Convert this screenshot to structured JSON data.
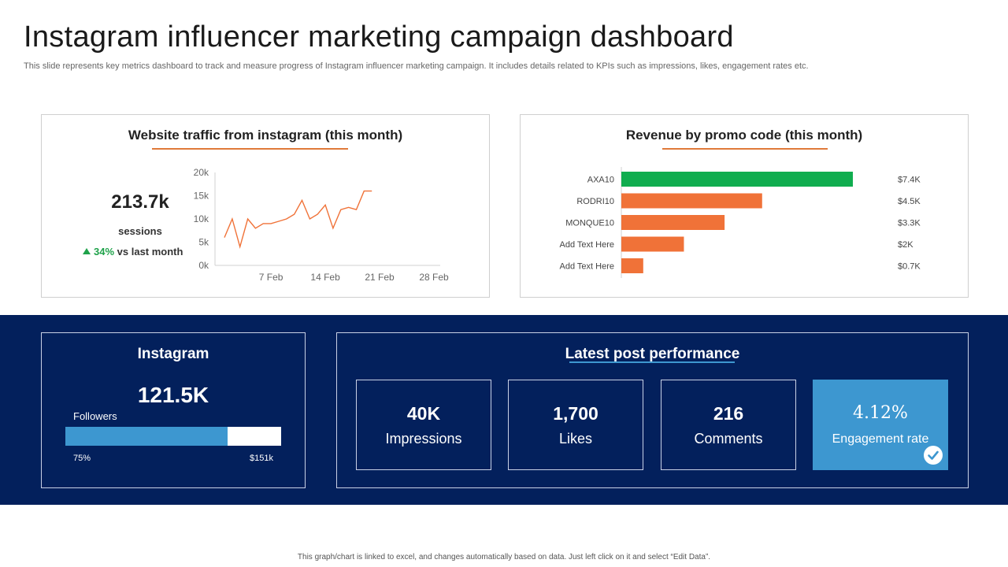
{
  "page": {
    "title": "Instagram influencer marketing campaign dashboard",
    "subtitle": "This slide represents key metrics dashboard to track and measure progress of Instagram influencer marketing campaign. It includes details related to KPIs such as impressions, likes, engagement rates etc.",
    "footer": "This graph/chart is linked to excel, and changes automatically based on data. Just left click on it and select “Edit Data”."
  },
  "traffic": {
    "sessions_value": "213.7k",
    "sessions_label": "sessions",
    "change_pct": "34%",
    "change_label": "vs last month"
  },
  "instagram": {
    "title": "Instagram",
    "followers_value": "121.5K",
    "followers_label": "Followers",
    "progress_left": "75%",
    "progress_right": "$151k",
    "progress_fraction": 0.75
  },
  "posts": {
    "title": "Latest post performance",
    "metrics": [
      {
        "value": "40K",
        "label": "Impressions"
      },
      {
        "value": "1,700",
        "label": "Likes"
      },
      {
        "value": "216",
        "label": "Comments"
      },
      {
        "value": "4.12%",
        "label": "Engagement rate"
      }
    ]
  },
  "colors": {
    "accent_orange": "#f07238",
    "accent_green": "#10ad4f",
    "navy": "#03205c",
    "blue": "#3d97d0"
  },
  "chart_data": [
    {
      "type": "line",
      "title": "Website traffic from instagram (this month)",
      "ylim": [
        0,
        20000
      ],
      "yticks": [
        0,
        5000,
        10000,
        15000,
        20000
      ],
      "ytick_labels": [
        "0k",
        "5k",
        "10k",
        "15k",
        "20k"
      ],
      "xlim": [
        1,
        28
      ],
      "xticks": [
        7,
        14,
        21,
        28
      ],
      "xtick_labels": [
        "7 Feb",
        "14 Feb",
        "21 Feb",
        "28 Feb"
      ],
      "x": [
        1,
        2,
        3,
        4,
        5,
        6,
        7,
        8,
        9,
        10,
        11,
        12,
        13,
        14,
        15,
        16,
        17,
        18,
        19,
        20
      ],
      "values": [
        6000,
        10000,
        4000,
        10000,
        8000,
        9000,
        9000,
        9500,
        10000,
        11000,
        14000,
        10000,
        11000,
        13000,
        8000,
        12000,
        12500,
        12000,
        16000,
        16000
      ],
      "color": "#f07238"
    },
    {
      "type": "bar",
      "orientation": "horizontal",
      "title": "Revenue by promo code (this month)",
      "categories": [
        "AXA10",
        "RODRI10",
        "MONQUE10",
        "Add Text Here",
        "Add Text Here"
      ],
      "values": [
        7.4,
        4.5,
        3.3,
        2.0,
        0.7
      ],
      "value_labels": [
        "$7.4K",
        "$4.5K",
        "$3.3K",
        "$2K",
        "$0.7K"
      ],
      "colors": [
        "#10ad4f",
        "#f07238",
        "#f07238",
        "#f07238",
        "#f07238"
      ],
      "xlim": [
        0,
        7.4
      ]
    }
  ]
}
